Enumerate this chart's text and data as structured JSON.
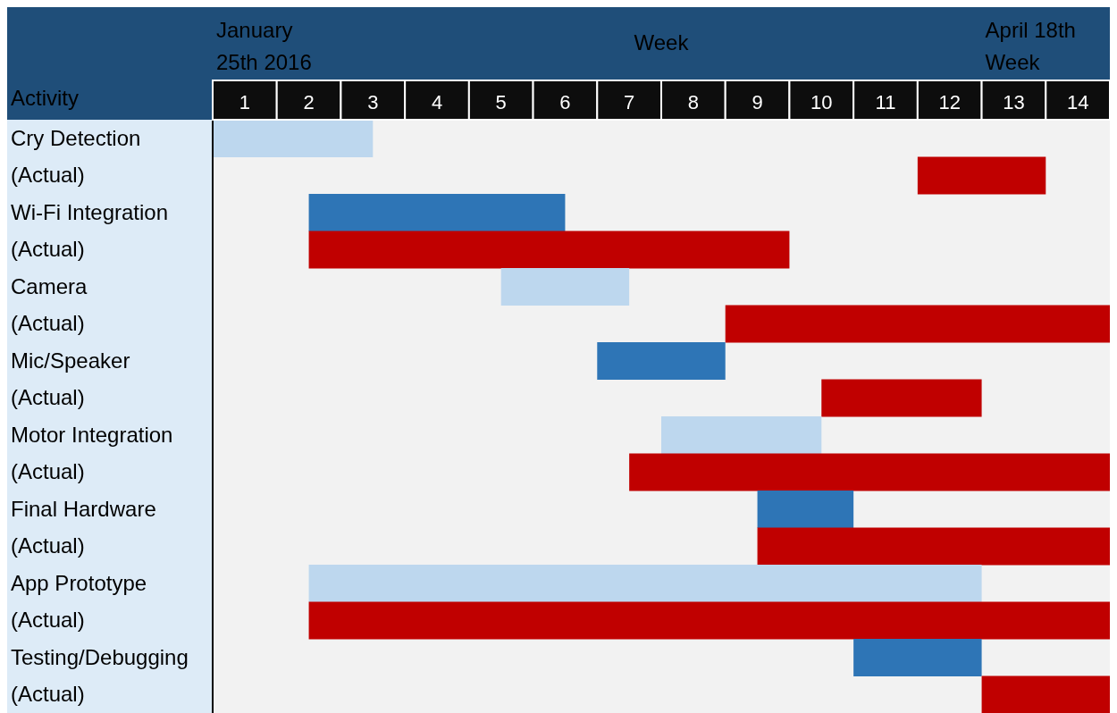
{
  "chart_data": {
    "type": "bar",
    "orientation": "horizontal",
    "xlabel": "Week",
    "ylabel": "Activity",
    "categories": [
      "Cry Detection",
      "(Actual)",
      "Wi-Fi Integration",
      "(Actual)",
      "Camera",
      "(Actual)",
      "Mic/Speaker",
      "(Actual)",
      "Motor Integration",
      "(Actual)",
      "Final Hardware",
      "(Actual)",
      "App Prototype",
      "(Actual)",
      "Testing/Debugging",
      "(Actual)"
    ],
    "base": [
      0.5,
      11.5,
      2,
      2,
      5,
      8.5,
      6.5,
      10,
      7.5,
      7,
      9,
      9,
      2,
      2,
      10.5,
      12.5
    ],
    "values": [
      2.5,
      2,
      4,
      7.5,
      2,
      6,
      2,
      2.5,
      2.5,
      7.5,
      1.5,
      5.5,
      10.5,
      12.5,
      2,
      2
    ],
    "colors": [
      "#bdd7ee",
      "#c00000",
      "#2e75b6",
      "#c00000",
      "#bdd7ee",
      "#c00000",
      "#2e75b6",
      "#c00000",
      "#bdd7ee",
      "#c00000",
      "#2e75b6",
      "#c00000",
      "#bdd7ee",
      "#c00000",
      "#2e75b6",
      "#c00000"
    ],
    "xlim": [
      0.5,
      14.5
    ],
    "xticks": [
      1,
      2,
      3,
      4,
      5,
      6,
      7,
      8,
      9,
      10,
      11,
      12,
      13,
      14
    ],
    "annotations": [
      "January 25th 2016",
      "April 18th Week"
    ]
  }
}
